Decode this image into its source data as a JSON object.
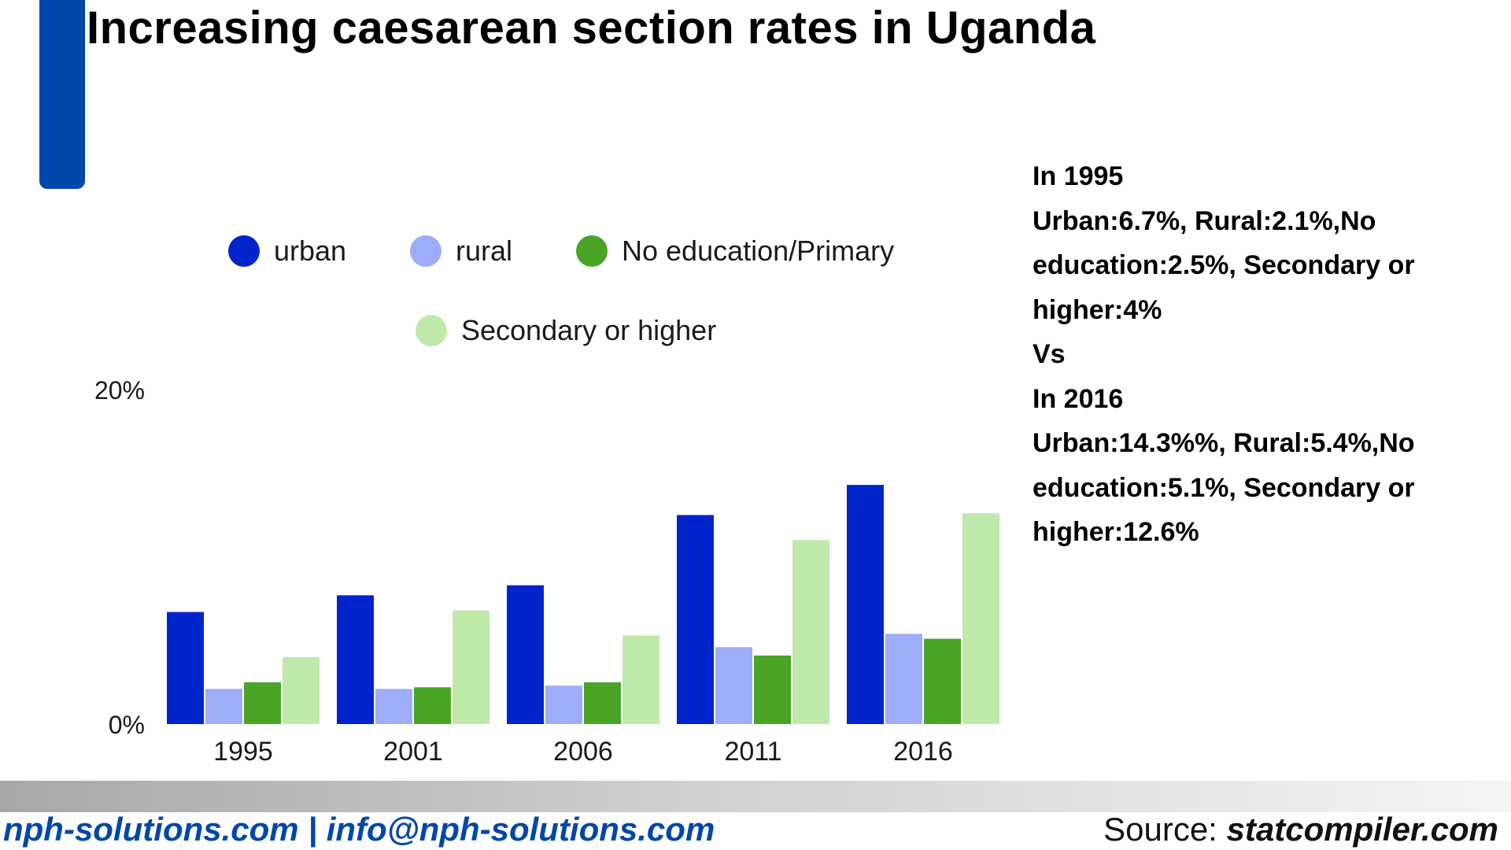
{
  "title": "Increasing caesarean section rates in Uganda",
  "colors": {
    "accent": "#0047AB",
    "urban": "#0024CC",
    "rural": "#9DADFA",
    "no_education": "#4AA526",
    "secondary": "#BFEAAA"
  },
  "chart_data": {
    "type": "bar",
    "categories": [
      "1995",
      "2001",
      "2006",
      "2011",
      "2016"
    ],
    "series": [
      {
        "name": "urban",
        "color": "#0024CC",
        "values": [
          6.7,
          7.7,
          8.3,
          12.5,
          14.3
        ]
      },
      {
        "name": "rural",
        "color": "#9DADFA",
        "values": [
          2.1,
          2.1,
          2.3,
          4.6,
          5.4
        ]
      },
      {
        "name": "No education/Primary",
        "color": "#4AA526",
        "values": [
          2.5,
          2.2,
          2.5,
          4.1,
          5.1
        ]
      },
      {
        "name": "Secondary or higher",
        "color": "#BFEAAA",
        "values": [
          4.0,
          6.8,
          5.3,
          11.0,
          12.6
        ]
      }
    ],
    "yticks": [
      "0%",
      "20%"
    ],
    "ylim": [
      0,
      20
    ],
    "grid": false,
    "legend": "top"
  },
  "summary": {
    "line1": "In 1995",
    "line2": "Urban:6.7%, Rural:2.1%,No education:2.5%, Secondary or higher:4%",
    "line3": "Vs",
    "line4": "In 2016",
    "line5": "Urban:14.3%%, Rural:5.4%,No education:5.1%, Secondary or higher:12.6%"
  },
  "footer": {
    "contact": "nph-solutions.com | info@nph-solutions.com",
    "source_prefix": "Source: ",
    "source_site": "statcompiler.com"
  }
}
